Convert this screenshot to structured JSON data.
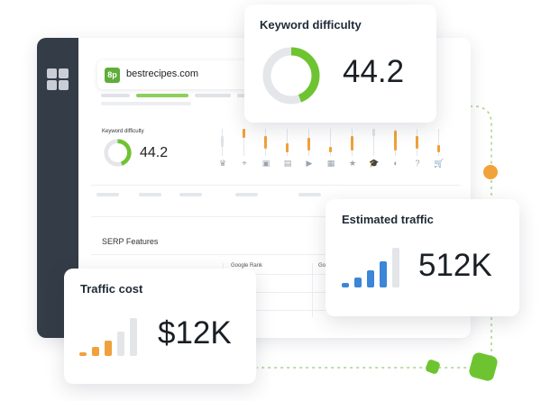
{
  "window": {
    "domain_badge": "8p",
    "domain": "bestrecipes.com",
    "kd_label": "Keyword difficulty",
    "kd_value": "44.2",
    "serp_label": "SERP Features",
    "col_rank": "Google Rank",
    "col_g": "Go"
  },
  "serp_feature_icons": [
    "crown-icon",
    "map-pin-icon",
    "image-icon",
    "news-icon",
    "video-icon",
    "image-pack-icon",
    "star-icon",
    "academic-cap-icon",
    "lightbulb-icon",
    "question-icon",
    "cart-icon"
  ],
  "cards": {
    "keyword_difficulty": {
      "title": "Keyword difficulty",
      "value": "44.2",
      "percent": 44.2
    },
    "estimated_traffic": {
      "title": "Estimated traffic",
      "value": "512K"
    },
    "traffic_cost": {
      "title": "Traffic cost",
      "value": "$12K"
    }
  },
  "colors": {
    "sidebar": "#343c47",
    "green": "#6ec430",
    "orange": "#f0a13a",
    "blue": "#3c86d8",
    "gray_bar": "#e3e5e8"
  }
}
